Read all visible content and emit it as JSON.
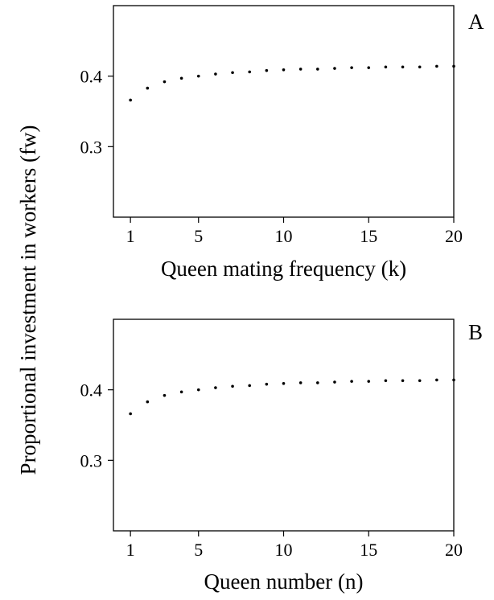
{
  "figure": {
    "ylabel": "Proportional investment in workers (fw)"
  },
  "chart_data": [
    {
      "type": "scatter",
      "panel_label": "A",
      "xlabel": "Queen mating frequency (k)",
      "xlim": [
        0,
        20
      ],
      "ylim": [
        0.2,
        0.5
      ],
      "x_ticks": [
        1,
        5,
        10,
        15,
        20
      ],
      "y_ticks": [
        0.3,
        0.4
      ],
      "grid": false,
      "series": [
        {
          "x": [
            1,
            2,
            3,
            4,
            5,
            6,
            7,
            8,
            9,
            10,
            11,
            12,
            13,
            14,
            15,
            16,
            17,
            18,
            19,
            20
          ],
          "y": [
            0.366,
            0.383,
            0.392,
            0.397,
            0.4,
            0.403,
            0.405,
            0.406,
            0.408,
            0.409,
            0.41,
            0.41,
            0.411,
            0.412,
            0.412,
            0.413,
            0.413,
            0.413,
            0.414,
            0.414
          ]
        }
      ]
    },
    {
      "type": "scatter",
      "panel_label": "B",
      "xlabel": "Queen number (n)",
      "xlim": [
        0,
        20
      ],
      "ylim": [
        0.2,
        0.5
      ],
      "x_ticks": [
        1,
        5,
        10,
        15,
        20
      ],
      "y_ticks": [
        0.3,
        0.4
      ],
      "grid": false,
      "series": [
        {
          "x": [
            1,
            2,
            3,
            4,
            5,
            6,
            7,
            8,
            9,
            10,
            11,
            12,
            13,
            14,
            15,
            16,
            17,
            18,
            19,
            20
          ],
          "y": [
            0.366,
            0.383,
            0.392,
            0.397,
            0.4,
            0.403,
            0.405,
            0.406,
            0.408,
            0.409,
            0.41,
            0.41,
            0.411,
            0.412,
            0.412,
            0.413,
            0.413,
            0.413,
            0.414,
            0.414
          ]
        }
      ]
    }
  ]
}
